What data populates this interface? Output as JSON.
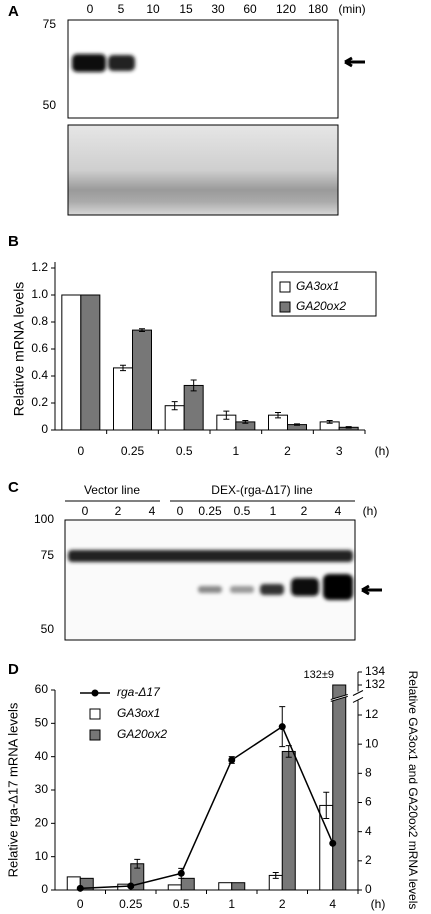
{
  "blot_a": {
    "label": "A",
    "times": [
      "0",
      "5",
      "10",
      "15",
      "30",
      "60",
      "120",
      "180"
    ],
    "unit": "(min)",
    "markers": [
      75,
      50
    ]
  },
  "blot_c": {
    "label": "C",
    "groups": [
      "Vector line",
      "DEX-(rga-Δ17) line"
    ],
    "lanes": [
      "0",
      "2",
      "4",
      "0",
      "0.25",
      "0.5",
      "1",
      "2",
      "4"
    ],
    "unit": "(h)",
    "markers": [
      100,
      75,
      50
    ]
  },
  "chart_data": [
    {
      "type": "bar",
      "label": "B",
      "categories": [
        "0",
        "0.25",
        "0.5",
        "1",
        "2",
        "3"
      ],
      "xunit": "(h)",
      "ylabel": "Relative mRNA levels",
      "ylim": [
        0,
        1.2
      ],
      "yticks": [
        0,
        0.2,
        0.4,
        0.6,
        0.8,
        {
          "value": 1,
          "label": "1.0"
        },
        1.2
      ],
      "legend": "upper right",
      "series": [
        {
          "name": "GA3ox1",
          "color": "#ffffff",
          "values": [
            1.0,
            0.46,
            0.18,
            0.11,
            0.11,
            0.06
          ],
          "errors": [
            null,
            0.02,
            0.03,
            0.03,
            0.02,
            0.01
          ]
        },
        {
          "name": "GA20ox2",
          "color": "#777777",
          "values": [
            1.0,
            0.74,
            0.33,
            0.06,
            0.04,
            0.02
          ],
          "errors": [
            null,
            0.01,
            0.04,
            0.01,
            0.005,
            0.005
          ]
        }
      ]
    },
    {
      "type": "combo",
      "label": "D",
      "categories": [
        "0",
        "0.25",
        "0.5",
        "1",
        "2",
        "4"
      ],
      "xunit": "(h)",
      "ylabel": "Relative rga-Δ17 mRNA levels",
      "y2label": "Relative GA3ox1 and GA20ox2 mRNA levels",
      "ylim": [
        0,
        60
      ],
      "yticks": [
        0,
        10,
        20,
        30,
        40,
        50,
        60
      ],
      "y2lim": [
        0,
        134
      ],
      "y2ticks": [
        0,
        2,
        4,
        6,
        8,
        10,
        12,
        132,
        134
      ],
      "y2break": [
        13,
        131
      ],
      "legend": "upper left",
      "series": [
        {
          "name": "rga-Δ17",
          "type": "line",
          "axis": "y",
          "color": "#000000",
          "values": [
            0.5,
            1.2,
            5,
            39,
            49,
            14
          ],
          "errors": [
            null,
            0.4,
            1.5,
            1,
            6,
            null
          ]
        },
        {
          "name": "GA3ox1",
          "type": "bar",
          "axis": "y2",
          "color": "#ffffff",
          "values": [
            0.9,
            0.4,
            0.35,
            0.5,
            1.0,
            5.8
          ],
          "errors": [
            null,
            null,
            null,
            null,
            0.2,
            0.9
          ]
        },
        {
          "name": "GA20ox2",
          "type": "bar",
          "axis": "y2",
          "color": "#777777",
          "values": [
            0.8,
            1.8,
            0.8,
            0.5,
            9.5,
            132
          ],
          "errors": [
            null,
            0.3,
            null,
            null,
            0.4,
            null
          ],
          "value_labels": [
            null,
            null,
            null,
            null,
            null,
            "132±9"
          ]
        }
      ]
    }
  ]
}
